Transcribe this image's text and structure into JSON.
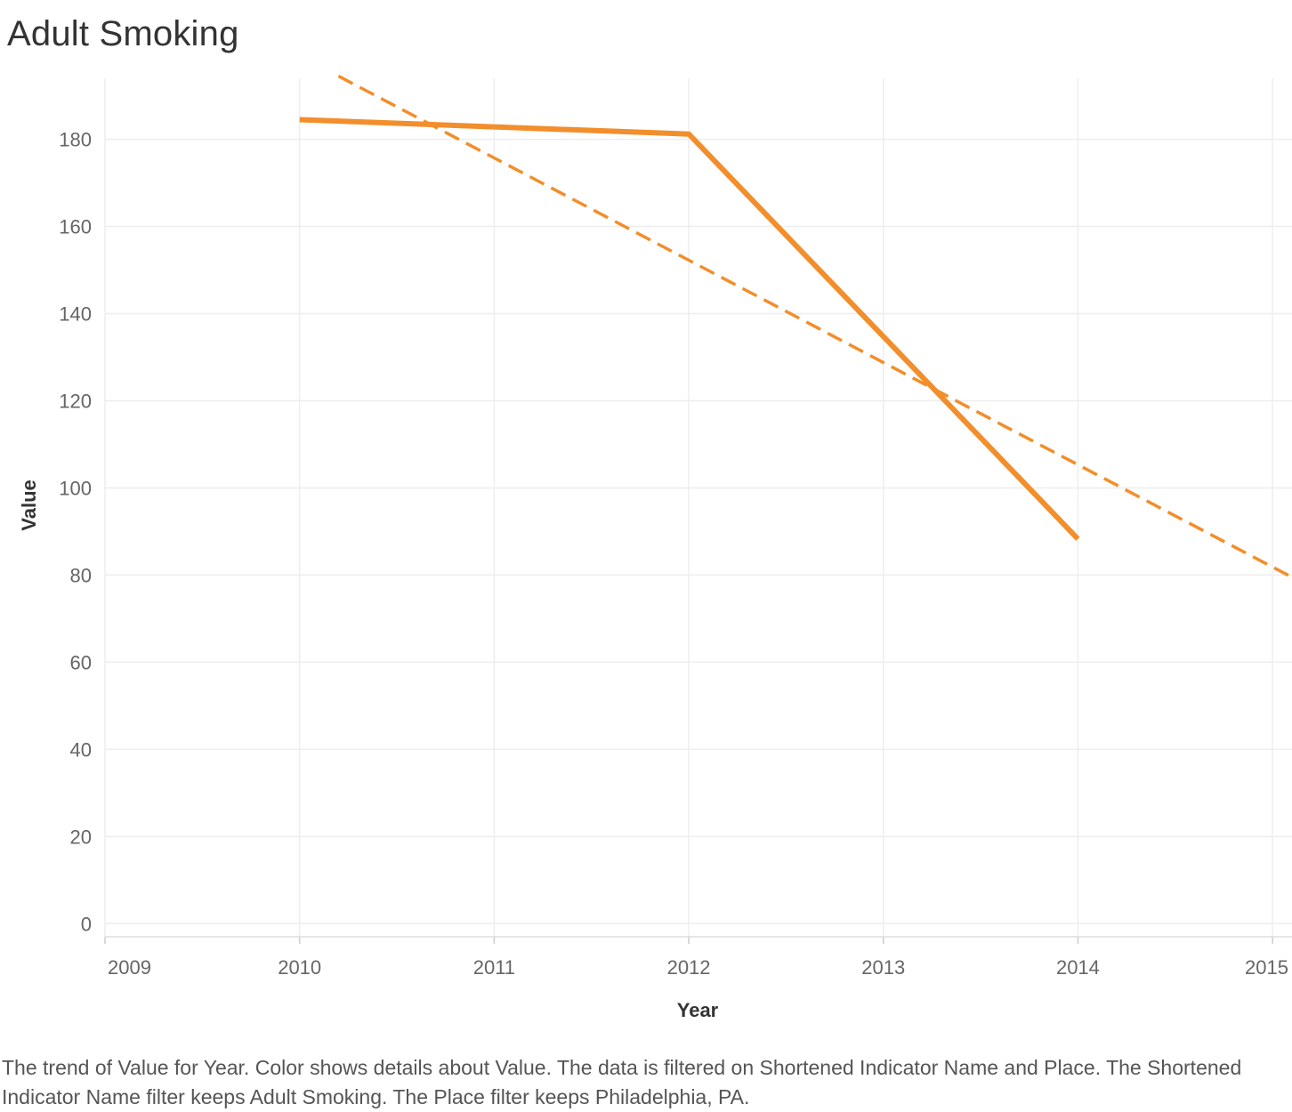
{
  "caption": "The trend of Value for Year.  Color shows details about Value. The data is filtered on Shortened Indicator Name and Place. The Shortened Indicator Name filter keeps Adult Smoking. The Place filter keeps Philadelphia, PA.",
  "chart_data": {
    "type": "line",
    "title": "Adult Smoking",
    "xlabel": "Year",
    "ylabel": "Value",
    "x_ticks": [
      "2009",
      "2010",
      "2011",
      "2012",
      "2013",
      "2014",
      "2015"
    ],
    "y_ticks": [
      "0",
      "20",
      "40",
      "60",
      "80",
      "100",
      "120",
      "140",
      "160",
      "180"
    ],
    "xlim": [
      2009,
      2015.1
    ],
    "ylim": [
      -3,
      194
    ],
    "grid": true,
    "color": "#f28e2b",
    "series": [
      {
        "x": [
          2010,
          2012,
          2014
        ],
        "y": [
          184.5,
          181.2,
          88.3
        ]
      }
    ],
    "trend_line": {
      "x": [
        2010.2,
        2015.1
      ],
      "y": [
        194.5,
        79.5
      ]
    }
  }
}
